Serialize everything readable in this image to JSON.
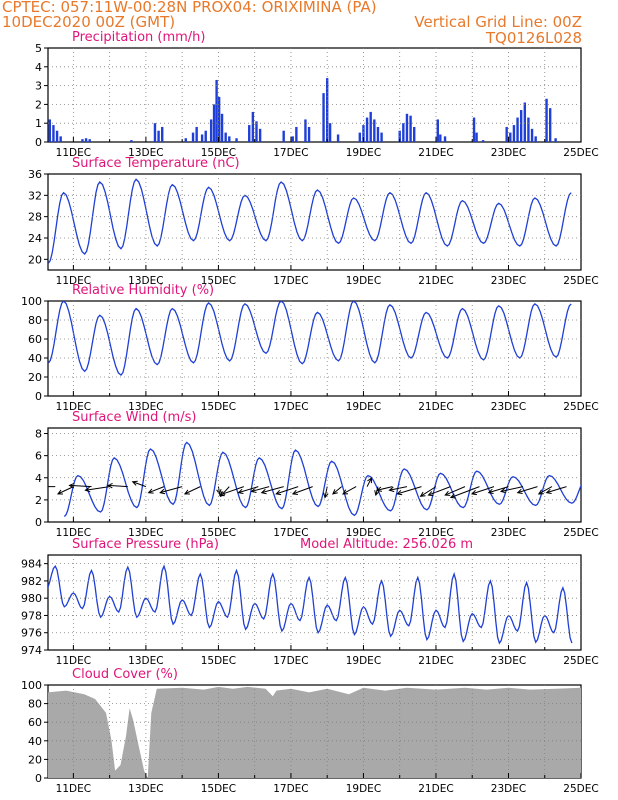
{
  "header": {
    "line1_left": "CPTEC:   057:11W-00:28N   PROX04: ORIXIMINA (PA)",
    "line2_left": "10DEC2020 00Z (GMT)",
    "line2_right": "Vertical Grid Line: 00Z",
    "line3_right": "TQ0126L028"
  },
  "colors": {
    "header": "#e8792b",
    "title": "#e0157a",
    "series": "#1f3fd6",
    "wind_vectors": "#000000",
    "cloud_fill": "#a9a9a9",
    "grid": "#808080"
  },
  "x_axis": {
    "ticks": [
      1,
      3,
      5,
      7,
      9,
      11,
      13,
      15
    ],
    "tick_labels": [
      "11DEC",
      "13DEC",
      "15DEC",
      "17DEC",
      "19DEC",
      "21DEC",
      "23DEC",
      "25DEC"
    ],
    "range_days": [
      0.3,
      15
    ]
  },
  "chart_data": [
    {
      "type": "bar",
      "title": "Precipitation (mm/h)",
      "ylim": [
        0,
        5
      ],
      "yticks": [
        "0",
        "1",
        "2",
        "3",
        "4",
        "5"
      ],
      "grid": true,
      "events": [
        {
          "day": 0.35,
          "value": 1.2
        },
        {
          "day": 0.45,
          "value": 0.9
        },
        {
          "day": 0.55,
          "value": 0.6
        },
        {
          "day": 0.65,
          "value": 0.3
        },
        {
          "day": 1.25,
          "value": 0.15
        },
        {
          "day": 1.35,
          "value": 0.2
        },
        {
          "day": 1.45,
          "value": 0.15
        },
        {
          "day": 2.6,
          "value": 0.1
        },
        {
          "day": 3.25,
          "value": 1.0
        },
        {
          "day": 3.35,
          "value": 0.6
        },
        {
          "day": 3.45,
          "value": 0.8
        },
        {
          "day": 4.1,
          "value": 0.2
        },
        {
          "day": 4.3,
          "value": 0.5
        },
        {
          "day": 4.4,
          "value": 0.8
        },
        {
          "day": 4.55,
          "value": 0.4
        },
        {
          "day": 4.65,
          "value": 0.6
        },
        {
          "day": 4.8,
          "value": 1.2
        },
        {
          "day": 4.88,
          "value": 2.0
        },
        {
          "day": 4.95,
          "value": 3.3
        },
        {
          "day": 5.02,
          "value": 2.4
        },
        {
          "day": 5.1,
          "value": 1.5
        },
        {
          "day": 5.2,
          "value": 0.5
        },
        {
          "day": 5.3,
          "value": 0.3
        },
        {
          "day": 5.5,
          "value": 0.2
        },
        {
          "day": 5.85,
          "value": 0.9
        },
        {
          "day": 5.95,
          "value": 1.6
        },
        {
          "day": 6.05,
          "value": 1.1
        },
        {
          "day": 6.15,
          "value": 0.7
        },
        {
          "day": 6.8,
          "value": 0.6
        },
        {
          "day": 7.05,
          "value": 0.3
        },
        {
          "day": 7.15,
          "value": 0.8
        },
        {
          "day": 7.4,
          "value": 1.2
        },
        {
          "day": 7.5,
          "value": 0.8
        },
        {
          "day": 7.9,
          "value": 2.6
        },
        {
          "day": 8.0,
          "value": 3.4
        },
        {
          "day": 8.08,
          "value": 1.0
        },
        {
          "day": 8.3,
          "value": 0.4
        },
        {
          "day": 8.9,
          "value": 0.5
        },
        {
          "day": 9.0,
          "value": 0.9
        },
        {
          "day": 9.1,
          "value": 1.3
        },
        {
          "day": 9.2,
          "value": 1.6
        },
        {
          "day": 9.3,
          "value": 1.2
        },
        {
          "day": 9.4,
          "value": 0.8
        },
        {
          "day": 9.5,
          "value": 0.5
        },
        {
          "day": 10.0,
          "value": 0.6
        },
        {
          "day": 10.1,
          "value": 1.0
        },
        {
          "day": 10.2,
          "value": 1.5
        },
        {
          "day": 10.3,
          "value": 1.4
        },
        {
          "day": 10.4,
          "value": 0.8
        },
        {
          "day": 11.05,
          "value": 1.2
        },
        {
          "day": 11.12,
          "value": 0.4
        },
        {
          "day": 11.25,
          "value": 0.3
        },
        {
          "day": 12.05,
          "value": 1.3
        },
        {
          "day": 12.12,
          "value": 0.5
        },
        {
          "day": 12.3,
          "value": 0.1
        },
        {
          "day": 12.95,
          "value": 0.8
        },
        {
          "day": 13.05,
          "value": 0.5
        },
        {
          "day": 13.15,
          "value": 0.9
        },
        {
          "day": 13.25,
          "value": 1.3
        },
        {
          "day": 13.35,
          "value": 1.7
        },
        {
          "day": 13.45,
          "value": 2.1
        },
        {
          "day": 13.55,
          "value": 1.3
        },
        {
          "day": 13.65,
          "value": 0.7
        },
        {
          "day": 13.75,
          "value": 0.3
        },
        {
          "day": 14.05,
          "value": 2.3
        },
        {
          "day": 14.15,
          "value": 1.8
        },
        {
          "day": 14.3,
          "value": 0.2
        }
      ]
    },
    {
      "type": "line",
      "title": "Surface Temperature (nC)",
      "ylim": [
        18,
        36
      ],
      "yticks": [
        "20",
        "24",
        "28",
        "32",
        "36"
      ],
      "grid": true,
      "daily_cycle": {
        "base_hour": 7.5,
        "days": [
          0,
          1,
          2,
          3,
          4,
          5,
          6,
          7,
          8,
          9,
          10,
          11,
          12,
          13,
          14,
          15
        ],
        "minima": [
          19.3,
          21,
          22,
          22.5,
          23.5,
          23.5,
          23.5,
          23.5,
          23,
          23.5,
          23,
          22.5,
          23,
          22.5,
          22.5,
          23
        ],
        "maxima": [
          32.5,
          34.5,
          35,
          34,
          33.5,
          32,
          34.5,
          33,
          31.5,
          32.5,
          32.5,
          31,
          30.5,
          31.5,
          32.5,
          32.5
        ],
        "max_hour": 17.5
      }
    },
    {
      "type": "line",
      "title": "Relative Humidity (%)",
      "ylim": [
        0,
        100
      ],
      "yticks": [
        "0",
        "20",
        "40",
        "60",
        "80",
        "100"
      ],
      "grid": true,
      "daily_cycle": {
        "base_hour": 7.5,
        "days": [
          0,
          1,
          2,
          3,
          4,
          5,
          6,
          7,
          8,
          9,
          10,
          11,
          12,
          13,
          14,
          15
        ],
        "minima": [
          35,
          26,
          22,
          33,
          35,
          37,
          45,
          34,
          37,
          35,
          40,
          40,
          38,
          40,
          41,
          40
        ],
        "maxima": [
          100,
          85,
          92,
          92,
          98,
          97,
          100,
          88,
          100,
          96,
          88,
          92,
          95,
          97,
          97,
          90
        ],
        "max_hour": 17.5
      }
    },
    {
      "type": "line",
      "title": "Surface Wind (m/s)",
      "ylim": [
        0,
        8.5
      ],
      "yticks": [
        "0",
        "2",
        "4",
        "6",
        "8"
      ],
      "grid": true,
      "daily_cycle": {
        "base_hour": 18,
        "days": [
          0,
          1,
          2,
          3,
          4,
          5,
          6,
          7,
          8,
          9,
          10,
          11,
          12,
          13,
          14,
          15
        ],
        "minima": [
          0.5,
          0.9,
          1.3,
          1.6,
          1.5,
          1.3,
          1.2,
          1.4,
          0.6,
          1.0,
          1.1,
          1.3,
          1.6,
          1.5,
          1.7,
          1.8
        ],
        "maxima": [
          4.2,
          5.8,
          6.6,
          7.2,
          6.3,
          5.8,
          6.5,
          5.5,
          4.2,
          4.8,
          4.4,
          4.6,
          4.1,
          4.2,
          3.8,
          3.6
        ],
        "max_hour": 3
      },
      "vectors": [
        {
          "day": 0.5,
          "u": -1.0,
          "v": 0.0
        },
        {
          "day": 1.0,
          "u": -0.7,
          "v": -0.6
        },
        {
          "day": 1.5,
          "u": -1.0,
          "v": 0.1
        },
        {
          "day": 2.0,
          "u": -1.1,
          "v": -0.3
        },
        {
          "day": 2.5,
          "u": -0.9,
          "v": 0.1
        },
        {
          "day": 3.0,
          "u": -0.6,
          "v": 0.4
        },
        {
          "day": 3.5,
          "u": -0.7,
          "v": -0.5
        },
        {
          "day": 4.0,
          "u": -1.0,
          "v": -0.5
        },
        {
          "day": 4.5,
          "u": -0.7,
          "v": -0.6
        },
        {
          "day": 5.0,
          "u": 0.05,
          "v": -0.6
        },
        {
          "day": 5.3,
          "u": -0.4,
          "v": -0.8
        },
        {
          "day": 5.7,
          "u": -1.1,
          "v": -0.7
        },
        {
          "day": 6.1,
          "u": -0.9,
          "v": -0.5
        },
        {
          "day": 6.4,
          "u": -0.8,
          "v": -0.4
        },
        {
          "day": 6.8,
          "u": -1.0,
          "v": -0.5
        },
        {
          "day": 7.2,
          "u": -1.0,
          "v": -0.6
        },
        {
          "day": 7.6,
          "u": -0.9,
          "v": -0.6
        },
        {
          "day": 8.0,
          "u": -0.1,
          "v": -0.9
        },
        {
          "day": 8.4,
          "u": -0.4,
          "v": -0.6
        },
        {
          "day": 8.8,
          "u": -0.6,
          "v": -0.6
        },
        {
          "day": 9.1,
          "u": 0.2,
          "v": 0.7
        },
        {
          "day": 9.4,
          "u": -0.1,
          "v": -0.7
        },
        {
          "day": 9.8,
          "u": -0.7,
          "v": -0.3
        },
        {
          "day": 10.2,
          "u": -0.8,
          "v": -0.3
        },
        {
          "day": 10.6,
          "u": -1.1,
          "v": -0.6
        },
        {
          "day": 11.0,
          "u": -0.7,
          "v": -0.8
        },
        {
          "day": 11.4,
          "u": -1.0,
          "v": -0.7
        },
        {
          "day": 11.8,
          "u": -0.9,
          "v": -0.7
        },
        {
          "day": 12.2,
          "u": -1.3,
          "v": -0.9
        },
        {
          "day": 12.6,
          "u": -1.0,
          "v": -0.6
        },
        {
          "day": 13.0,
          "u": -0.9,
          "v": -0.5
        },
        {
          "day": 13.4,
          "u": -1.0,
          "v": -0.4
        },
        {
          "day": 13.8,
          "u": -0.9,
          "v": -0.5
        },
        {
          "day": 14.2,
          "u": -0.6,
          "v": -0.6
        },
        {
          "day": 14.6,
          "u": -0.9,
          "v": -0.5
        }
      ]
    },
    {
      "type": "line",
      "title": "Surface Pressure (hPa)",
      "subtitle": "Model Altitude: 256.026 m",
      "ylim": [
        974,
        985
      ],
      "yticks": [
        "974",
        "976",
        "978",
        "980",
        "982",
        "984"
      ],
      "grid": true,
      "semi_diurnal": {
        "days": [
          0,
          1,
          2,
          3,
          4,
          5,
          6,
          7,
          8,
          9,
          10,
          11,
          12,
          13,
          14,
          15
        ],
        "primary_max_hour": 12,
        "secondary_max_hour": 0,
        "primary_min_hour": 18,
        "secondary_min_hour": 6,
        "primary_maxima": [
          983.7,
          983.2,
          983.6,
          983.7,
          982.8,
          983.2,
          982.8,
          982.4,
          982.4,
          982.0,
          982.4,
          982.8,
          982.0,
          981.8,
          981.2,
          979.0
        ],
        "primary_minima": [
          979.0,
          977.8,
          977.8,
          977.0,
          976.6,
          976.4,
          976.2,
          976.0,
          975.8,
          975.6,
          975.2,
          975.0,
          974.8,
          974.9,
          974.8,
          975.0
        ],
        "secondary_maxima": [
          983.7,
          980.6,
          980.2,
          980.0,
          979.8,
          979.6,
          979.4,
          979.4,
          979.2,
          979.0,
          978.6,
          978.6,
          978.2,
          978.0,
          978.0,
          976.0
        ],
        "secondary_minima": [
          981.0,
          978.8,
          978.4,
          978.4,
          978.0,
          977.8,
          977.6,
          977.4,
          977.4,
          977.0,
          976.8,
          976.6,
          976.6,
          976.2,
          976.0,
          975.0
        ]
      }
    },
    {
      "type": "area",
      "title": "Cloud Cover (%)",
      "ylim": [
        0,
        100
      ],
      "yticks": [
        "0",
        "20",
        "40",
        "60",
        "80",
        "100"
      ],
      "grid": true,
      "profile": [
        {
          "day": 0.3,
          "value": 92
        },
        {
          "day": 0.8,
          "value": 94
        },
        {
          "day": 1.3,
          "value": 90
        },
        {
          "day": 1.6,
          "value": 85
        },
        {
          "day": 1.9,
          "value": 70
        },
        {
          "day": 2.05,
          "value": 40
        },
        {
          "day": 2.15,
          "value": 8
        },
        {
          "day": 2.3,
          "value": 14
        },
        {
          "day": 2.45,
          "value": 45
        },
        {
          "day": 2.55,
          "value": 75
        },
        {
          "day": 2.65,
          "value": 62
        },
        {
          "day": 2.8,
          "value": 35
        },
        {
          "day": 2.95,
          "value": 8
        },
        {
          "day": 3.05,
          "value": 0
        },
        {
          "day": 3.15,
          "value": 70
        },
        {
          "day": 3.3,
          "value": 96
        },
        {
          "day": 4.0,
          "value": 97
        },
        {
          "day": 4.6,
          "value": 95
        },
        {
          "day": 5.0,
          "value": 98
        },
        {
          "day": 5.4,
          "value": 96
        },
        {
          "day": 5.8,
          "value": 98
        },
        {
          "day": 6.3,
          "value": 96
        },
        {
          "day": 6.5,
          "value": 88
        },
        {
          "day": 6.6,
          "value": 94
        },
        {
          "day": 7.0,
          "value": 96
        },
        {
          "day": 7.5,
          "value": 92
        },
        {
          "day": 8.0,
          "value": 96
        },
        {
          "day": 8.6,
          "value": 90
        },
        {
          "day": 9.0,
          "value": 97
        },
        {
          "day": 9.6,
          "value": 94
        },
        {
          "day": 10.2,
          "value": 97
        },
        {
          "day": 11.0,
          "value": 95
        },
        {
          "day": 11.8,
          "value": 97
        },
        {
          "day": 12.4,
          "value": 95
        },
        {
          "day": 13.0,
          "value": 97
        },
        {
          "day": 13.6,
          "value": 95
        },
        {
          "day": 14.3,
          "value": 96
        },
        {
          "day": 15.0,
          "value": 97
        }
      ]
    }
  ]
}
